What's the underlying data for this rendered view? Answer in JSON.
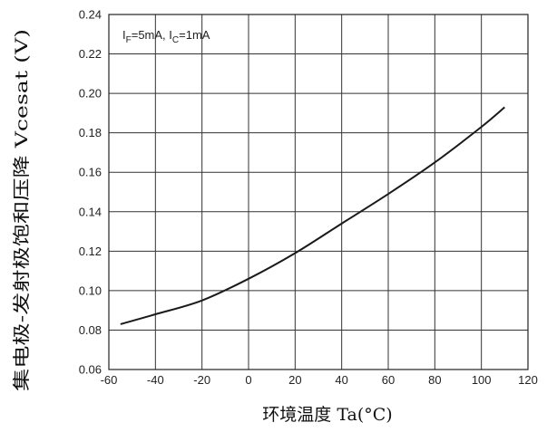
{
  "chart_data": {
    "type": "line",
    "title": "",
    "xlabel": "环境温度 Ta(°C)",
    "ylabel": "集电极-发射极饱和压降 Vcesat (V)",
    "xlim": [
      -60,
      120
    ],
    "ylim": [
      0.06,
      0.24
    ],
    "x_ticks": [
      "-60",
      "-40",
      "-20",
      "0",
      "20",
      "40",
      "60",
      "80",
      "100",
      "120"
    ],
    "y_ticks": [
      "0.06",
      "0.08",
      "0.10",
      "0.12",
      "0.14",
      "0.16",
      "0.18",
      "0.20",
      "0.22",
      "0.24"
    ],
    "grid": true,
    "annotation": {
      "parts": [
        {
          "text": "I",
          "sub": false
        },
        {
          "text": "F",
          "sub": true
        },
        {
          "text": "=5mA, I",
          "sub": false
        },
        {
          "text": "C",
          "sub": true
        },
        {
          "text": "=1mA",
          "sub": false
        }
      ]
    },
    "series": [
      {
        "x": [
          -55,
          -40,
          -20,
          0,
          20,
          40,
          60,
          80,
          100,
          110
        ],
        "y": [
          0.083,
          0.088,
          0.095,
          0.106,
          0.119,
          0.134,
          0.149,
          0.165,
          0.183,
          0.193
        ]
      }
    ],
    "colors": {
      "line": "#1a1a1a",
      "grid": "#333333",
      "frame": "#222222"
    }
  }
}
